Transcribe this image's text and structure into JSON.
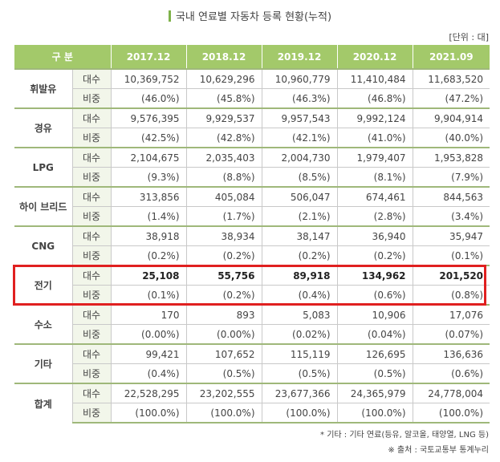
{
  "title": "국내 연료별 자동차 등록 현황(누적)",
  "unit": "[단위 : 대]",
  "header": {
    "category": "구 분",
    "years": [
      "2017.12",
      "2018.12",
      "2019.12",
      "2020.12",
      "2021.09"
    ]
  },
  "rows": [
    {
      "name": "휘발유",
      "count_label": "대수",
      "ratio_label": "비중",
      "counts": [
        "10,369,752",
        "10,629,296",
        "10,960,779",
        "11,410,484",
        "11,683,520"
      ],
      "ratios": [
        "(46.0%)",
        "(45.8%)",
        "(46.3%)",
        "(46.8%)",
        "(47.2%)"
      ]
    },
    {
      "name": "경유",
      "count_label": "대수",
      "ratio_label": "비중",
      "counts": [
        "9,576,395",
        "9,929,537",
        "9,957,543",
        "9,992,124",
        "9,904,914"
      ],
      "ratios": [
        "(42.5%)",
        "(42.8%)",
        "(42.1%)",
        "(41.0%)",
        "(40.0%)"
      ]
    },
    {
      "name": "LPG",
      "count_label": "대수",
      "ratio_label": "비중",
      "counts": [
        "2,104,675",
        "2,035,403",
        "2,004,730",
        "1,979,407",
        "1,953,828"
      ],
      "ratios": [
        "(9.3%)",
        "(8.8%)",
        "(8.5%)",
        "(8.1%)",
        "(7.9%)"
      ]
    },
    {
      "name": "하이 브리드",
      "count_label": "대수",
      "ratio_label": "비중",
      "counts": [
        "313,856",
        "405,084",
        "506,047",
        "674,461",
        "844,563"
      ],
      "ratios": [
        "(1.4%)",
        "(1.7%)",
        "(2.1%)",
        "(2.8%)",
        "(3.4%)"
      ]
    },
    {
      "name": "CNG",
      "count_label": "대수",
      "ratio_label": "비중",
      "counts": [
        "38,918",
        "38,934",
        "38,147",
        "36,940",
        "35,947"
      ],
      "ratios": [
        "(0.2%)",
        "(0.2%)",
        "(0.2%)",
        "(0.2%)",
        "(0.1%)"
      ]
    },
    {
      "name": "전기",
      "count_label": "대수",
      "ratio_label": "비중",
      "counts": [
        "25,108",
        "55,756",
        "89,918",
        "134,962",
        "201,520"
      ],
      "ratios": [
        "(0.1%)",
        "(0.2%)",
        "(0.4%)",
        "(0.6%)",
        "(0.8%)"
      ]
    },
    {
      "name": "수소",
      "count_label": "대수",
      "ratio_label": "비중",
      "counts": [
        "170",
        "893",
        "5,083",
        "10,906",
        "17,076"
      ],
      "ratios": [
        "(0.00%)",
        "(0.00%)",
        "(0.02%)",
        "(0.04%)",
        "(0.07%)"
      ]
    },
    {
      "name": "기타",
      "count_label": "대수",
      "ratio_label": "비중",
      "counts": [
        "99,421",
        "107,652",
        "115,119",
        "126,695",
        "136,636"
      ],
      "ratios": [
        "(0.4%)",
        "(0.5%)",
        "(0.5%)",
        "(0.5%)",
        "(0.6%)"
      ]
    },
    {
      "name": "합계",
      "count_label": "대수",
      "ratio_label": "비중",
      "counts": [
        "22,528,295",
        "23,202,555",
        "23,677,366",
        "24,365,979",
        "24,778,004"
      ],
      "ratios": [
        "(100.0%)",
        "(100.0%)",
        "(100.0%)",
        "(100.0%)",
        "(100.0%)"
      ]
    }
  ],
  "notes": {
    "other": "* 기타 : 기타 연료(등유, 알코올, 태양열, LNG 등)",
    "source": "※ 출처 : 국토교통부 통계누리"
  }
}
